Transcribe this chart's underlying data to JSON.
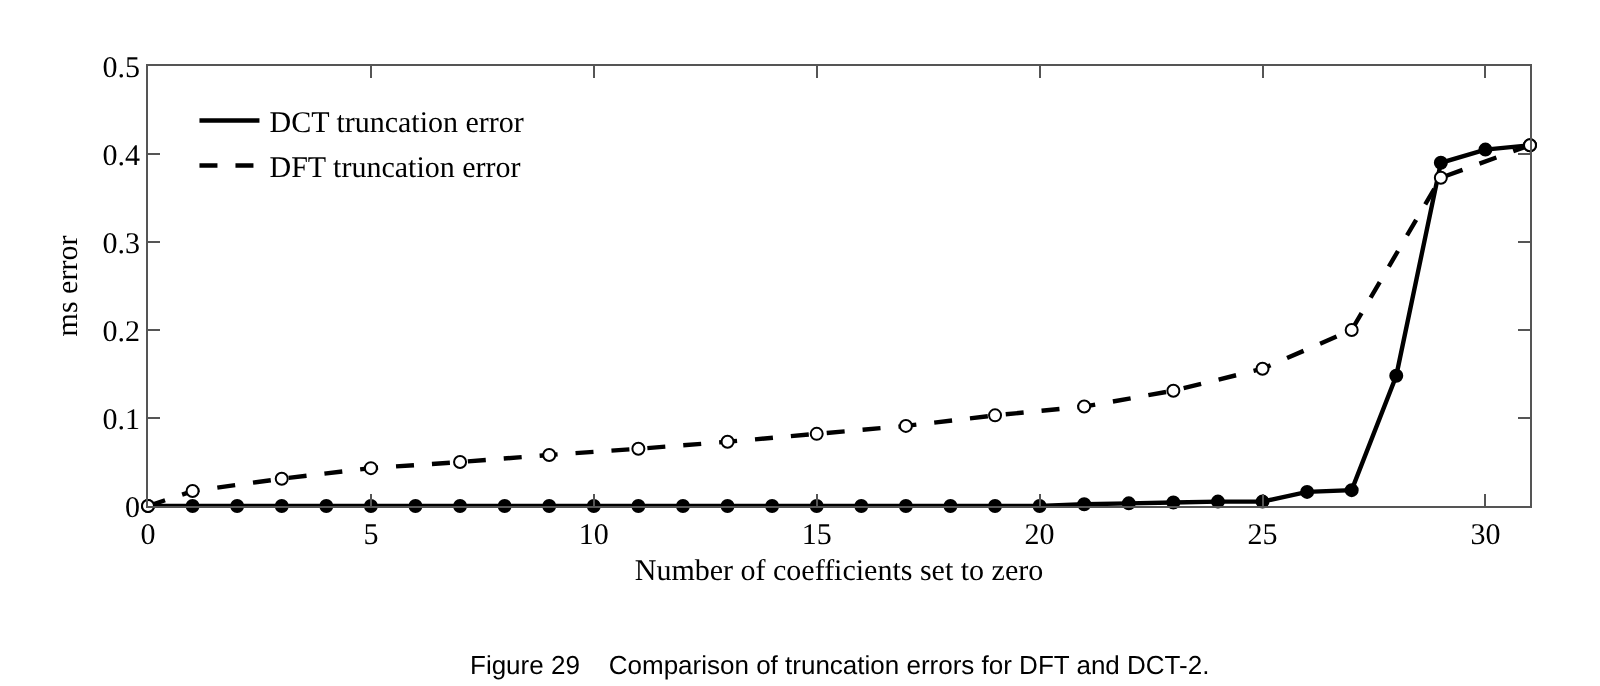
{
  "chart_data": {
    "type": "line",
    "xlabel": "Number of coefficients set to zero",
    "ylabel": "ms error",
    "xlim": [
      0,
      31
    ],
    "xticks": [
      0,
      5,
      10,
      15,
      20,
      25,
      30
    ],
    "ylim": [
      0,
      0.5
    ],
    "yticks": [
      0,
      0.1,
      0.2,
      0.3,
      0.4,
      0.5
    ],
    "grid": false,
    "legend": "top left",
    "series": [
      {
        "name": "DCT truncation error",
        "color": "#000000",
        "line_style": "solid",
        "marker": "circle",
        "x": [
          0,
          1,
          2,
          3,
          4,
          5,
          6,
          7,
          8,
          9,
          10,
          11,
          12,
          13,
          14,
          15,
          16,
          17,
          18,
          19,
          20,
          21,
          22,
          23,
          24,
          25,
          26,
          27,
          28,
          29,
          30,
          31
        ],
        "values": [
          0,
          0,
          0,
          0,
          0,
          0,
          0,
          0,
          0,
          0,
          0,
          0,
          0,
          0,
          0,
          0,
          0,
          0,
          0,
          0,
          0,
          0.002,
          0.003,
          0.004,
          0.005,
          0.005,
          0.016,
          0.018,
          0.148,
          0.39,
          0.405,
          0.41
        ]
      },
      {
        "name": "DFT truncation error",
        "color": "#000000",
        "line_style": "dashed",
        "marker": "circle-open",
        "x": [
          0,
          1,
          3,
          5,
          7,
          9,
          11,
          13,
          15,
          17,
          19,
          21,
          23,
          25,
          27,
          29,
          31
        ],
        "values": [
          0,
          0.017,
          0.031,
          0.043,
          0.05,
          0.058,
          0.065,
          0.073,
          0.082,
          0.091,
          0.103,
          0.113,
          0.131,
          0.156,
          0.2,
          0.373,
          0.41
        ]
      }
    ],
    "annotations": [
      "Figure 29    Comparison of truncation errors for DFT and DCT-2."
    ]
  }
}
